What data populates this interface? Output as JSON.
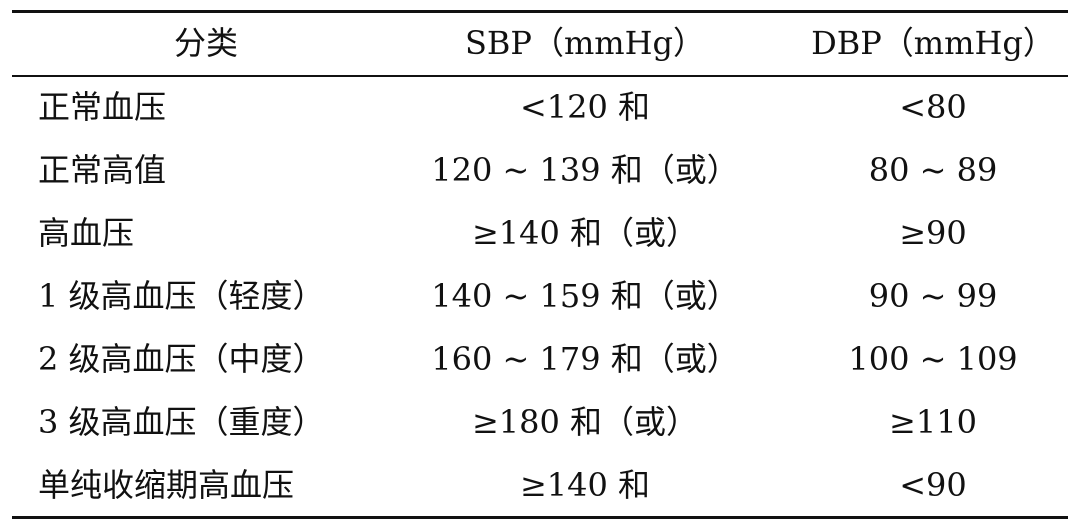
{
  "table": {
    "headers": [
      "分类",
      "SBP（mmHg）",
      "DBP（mmHg）"
    ],
    "rows": [
      [
        "正常血压",
        "<120 和",
        "<80"
      ],
      [
        "正常高值",
        "120 ~ 139 和（或）",
        "80 ~ 89"
      ],
      [
        "高血压",
        "≥140 和（或）",
        "≥90"
      ],
      [
        "1 级高血压（轻度）",
        "140 ~ 159 和（或）",
        "90 ~ 99"
      ],
      [
        "2 级高血压（中度）",
        "160 ~ 179 和（或）",
        "100 ~ 109"
      ],
      [
        "3 级高血压（重度）",
        "≥180 和（或）",
        "≥110"
      ],
      [
        "单纯收缩期高血压",
        "≥140 和",
        "<90"
      ]
    ]
  }
}
